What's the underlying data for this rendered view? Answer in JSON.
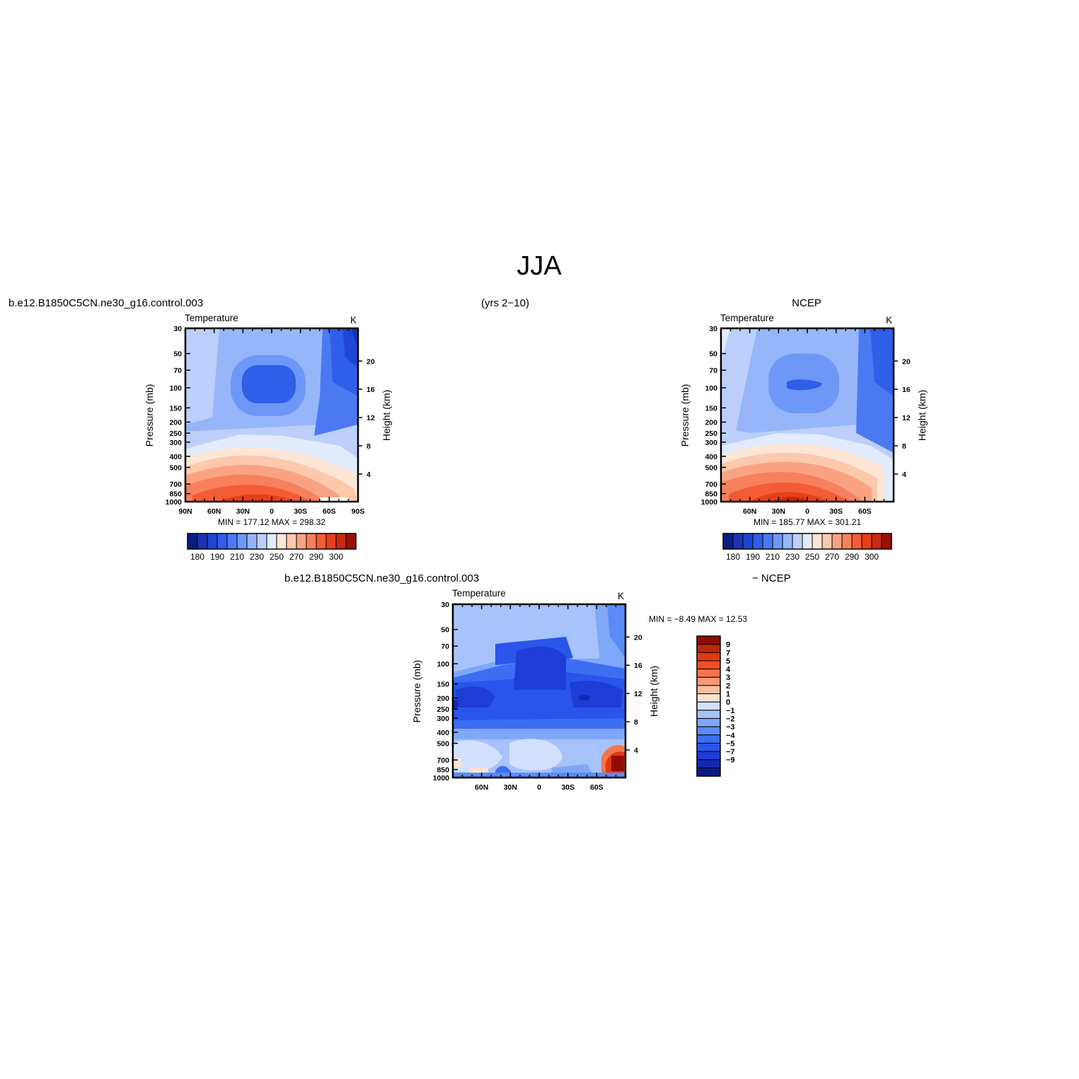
{
  "page": {
    "title": "JJA",
    "case_name": "b.e12.B1850C5CN.ne30_g16.control.003",
    "years": "(yrs 2−10)",
    "obs_name": "NCEP",
    "diff_case_name": "b.e12.B1850C5CN.ne30_g16.control.003",
    "diff_obs_name": "− NCEP"
  },
  "colors": {
    "abs_palette": [
      "#0a1c85",
      "#1a33b5",
      "#1f45d6",
      "#2f5ee8",
      "#4a79f2",
      "#6e98f7",
      "#97b6fa",
      "#bdd0fc",
      "#e2ecfe",
      "#fde6d5",
      "#fcc9ac",
      "#f9a383",
      "#f7815f",
      "#f35c36",
      "#e6401c",
      "#c72a10",
      "#9b1006"
    ],
    "diff_palette": [
      "#0b1a84",
      "#1328b0",
      "#1d3dd6",
      "#2955ea",
      "#3d6ef2",
      "#5a8bf6",
      "#80a8f9",
      "#a8c3fb",
      "#d2e1fd",
      "#fde3cf",
      "#fbc0a0",
      "#f89a74",
      "#f5764c",
      "#f04e27",
      "#df3a13",
      "#bf2608",
      "#930a02"
    ]
  },
  "chart_data": [
    {
      "type": "heatmap",
      "panel": "model",
      "title_left": "Temperature",
      "title_right": "K",
      "ylabel": "Pressure (mb)",
      "ylabel_right": "Height (km)",
      "x_ticks": [
        "90N",
        "60N",
        "30N",
        "0",
        "30S",
        "60S",
        "90S"
      ],
      "y_ticks": [
        "30",
        "50",
        "70",
        "100",
        "150",
        "200",
        "250",
        "300",
        "400",
        "500",
        "700",
        "850",
        "1000"
      ],
      "y_ticks_right": [
        "20",
        "16",
        "12",
        "8",
        "4"
      ],
      "min_max": "MIN =  177.12   MAX =  298.32",
      "colorbar_labels": [
        "180",
        "190",
        "210",
        "230",
        "250",
        "270",
        "290",
        "300"
      ],
      "field_range": [
        177.12,
        298.32
      ]
    },
    {
      "type": "heatmap",
      "panel": "obs",
      "title_left": "Temperature",
      "title_right": "K",
      "ylabel": "Pressure (mb)",
      "ylabel_right": "Height (km)",
      "x_ticks": [
        "60N",
        "30N",
        "0",
        "30S",
        "60S"
      ],
      "y_ticks": [
        "30",
        "50",
        "70",
        "100",
        "150",
        "200",
        "250",
        "300",
        "400",
        "500",
        "700",
        "850",
        "1000"
      ],
      "y_ticks_right": [
        "20",
        "16",
        "12",
        "8",
        "4"
      ],
      "min_max": "MIN =  185.77   MAX =  301.21",
      "colorbar_labels": [
        "180",
        "190",
        "210",
        "230",
        "250",
        "270",
        "290",
        "300"
      ],
      "field_range": [
        185.77,
        301.21
      ]
    },
    {
      "type": "heatmap",
      "panel": "difference",
      "title_left": "Temperature",
      "title_right": "K",
      "ylabel": "Pressure (mb)",
      "ylabel_right": "Height (km)",
      "x_ticks": [
        "60N",
        "30N",
        "0",
        "30S",
        "60S"
      ],
      "y_ticks": [
        "30",
        "50",
        "70",
        "100",
        "150",
        "200",
        "250",
        "300",
        "400",
        "500",
        "700",
        "850",
        "1000"
      ],
      "y_ticks_right": [
        "20",
        "16",
        "12",
        "8",
        "4"
      ],
      "min_max": "MIN =   −8.49   MAX =   12.53",
      "colorbar_labels": [
        "9",
        "7",
        "5",
        "4",
        "3",
        "2",
        "1",
        "0",
        "−1",
        "−2",
        "−3",
        "−4",
        "−5",
        "−7",
        "−9"
      ],
      "field_range": [
        -8.49,
        12.53
      ]
    }
  ]
}
